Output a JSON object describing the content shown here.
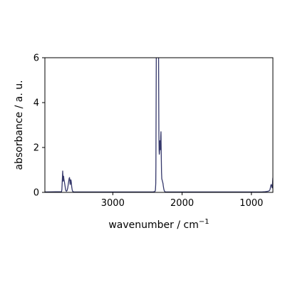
{
  "chart_data": {
    "type": "line",
    "title": "",
    "xlabel": "wavenumber / cm",
    "xlabel_sup": "−1",
    "ylabel": "absorbance / a. u.",
    "xlim": [
      3980,
      690
    ],
    "ylim": [
      0,
      6
    ],
    "x_reversed": true,
    "x_ticks": [
      3000,
      2000,
      1000
    ],
    "y_ticks": [
      0,
      2,
      4,
      6
    ],
    "grid": false,
    "legend": "none",
    "series": [
      {
        "color": "#35386b",
        "x": [
          3980,
          3740,
          3735,
          3730,
          3726,
          3723,
          3720,
          3717,
          3713,
          3710,
          3706,
          3700,
          3690,
          3680,
          3670,
          3660,
          3650,
          3640,
          3630,
          3625,
          3620,
          3617,
          3614,
          3610,
          3606,
          3602,
          3597,
          3593,
          3588,
          3585,
          3580,
          3570,
          3560,
          3550,
          3540,
          3530,
          3500,
          3400,
          3200,
          3000,
          2800,
          2600,
          2500,
          2420,
          2400,
          2390,
          2385,
          2380,
          2378,
          2376,
          2372,
          2368,
          2365,
          2362,
          2358,
          2354,
          2350,
          2346,
          2343,
          2340,
          2337,
          2335,
          2332,
          2329,
          2326,
          2323,
          2320,
          2317,
          2314,
          2311,
          2308,
          2305,
          2303,
          2300,
          2297,
          2293,
          2288,
          2284,
          2280,
          2276,
          2272,
          2268,
          2264,
          2260,
          2255,
          2250,
          2245,
          2240,
          2230,
          2200,
          2100,
          2000,
          1800,
          1600,
          1400,
          1200,
          1000,
          850,
          800,
          780,
          760,
          750,
          740,
          735,
          730,
          725,
          720,
          715,
          710,
          705,
          700,
          695,
          690
        ],
        "y": [
          0.02,
          0.03,
          0.12,
          0.45,
          0.75,
          0.95,
          0.7,
          0.5,
          0.62,
          0.72,
          0.6,
          0.5,
          0.3,
          0.1,
          0.05,
          0.08,
          0.2,
          0.42,
          0.62,
          0.66,
          0.55,
          0.4,
          0.35,
          0.45,
          0.56,
          0.52,
          0.4,
          0.25,
          0.15,
          0.1,
          0.05,
          0.03,
          0.02,
          0.02,
          0.02,
          0.02,
          0.02,
          0.02,
          0.02,
          0.02,
          0.02,
          0.02,
          0.02,
          0.02,
          0.03,
          0.05,
          0.1,
          0.4,
          1.2,
          3.0,
          6.5,
          6.5,
          6.5,
          6.5,
          6.5,
          6.5,
          6.5,
          6.5,
          6.5,
          6.5,
          4.0,
          2.6,
          1.9,
          1.7,
          1.8,
          2.1,
          2.3,
          2.2,
          1.9,
          2.1,
          2.5,
          2.7,
          2.2,
          1.5,
          0.9,
          0.6,
          0.55,
          0.5,
          0.45,
          0.4,
          0.3,
          0.22,
          0.15,
          0.1,
          0.06,
          0.04,
          0.03,
          0.02,
          0.02,
          0.02,
          0.02,
          0.02,
          0.02,
          0.02,
          0.02,
          0.02,
          0.02,
          0.02,
          0.03,
          0.04,
          0.05,
          0.06,
          0.08,
          0.1,
          0.15,
          0.22,
          0.3,
          0.35,
          0.32,
          0.25,
          0.2,
          0.4,
          0.65
        ]
      }
    ]
  }
}
